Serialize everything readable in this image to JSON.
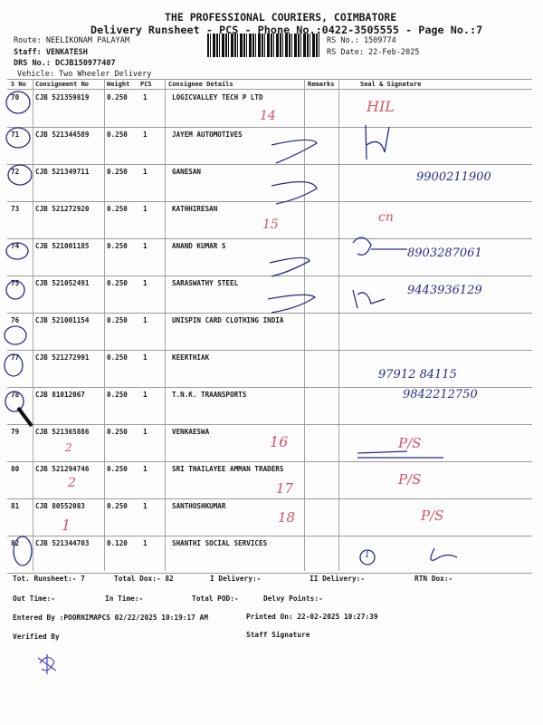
{
  "header": {
    "company": "THE PROFESSIONAL COURIERS, COIMBATORE",
    "title": "Delivery Runsheet - PCS - Phone No.:0422-3505555 - Page No.:7",
    "route": "Route: NEELIKONAM PALAYAM",
    "staff": "Staff: VENKATESH",
    "drs_no": "DRS No.: DCJB150977407",
    "vehicle": "Vehicle: Two Wheeler Delivery",
    "rs_no": "RS No.: 1509774",
    "rs_date": "RS Date: 22-Feb-2025"
  },
  "table": {
    "columns": [
      "S No",
      "Consignment No",
      "Weight",
      "PCS",
      "Consignee Details",
      "Remarks",
      "Seal & Signature"
    ],
    "rows": [
      {
        "sno": "70",
        "cn": "CJB 521359819",
        "weight": "0.250",
        "pcs": "1",
        "consignee": "LOGICVALLEY TECH P  LTD"
      },
      {
        "sno": "71",
        "cn": "CJB 521344589",
        "weight": "0.250",
        "pcs": "1",
        "consignee": "JAYEM AUTOMOTIVES"
      },
      {
        "sno": "72",
        "cn": "CJB 521349711",
        "weight": "0.250",
        "pcs": "1",
        "consignee": "GANESAN"
      },
      {
        "sno": "73",
        "cn": "CJB 521272920",
        "weight": "0.250",
        "pcs": "1",
        "consignee": "KATHHIRESAN"
      },
      {
        "sno": "74",
        "cn": "CJB 521001185",
        "weight": "0.250",
        "pcs": "1",
        "consignee": "ANAND KUMAR S"
      },
      {
        "sno": "75",
        "cn": "CJB 521052491",
        "weight": "0.250",
        "pcs": "1",
        "consignee": "SARASWATHY STEEL"
      },
      {
        "sno": "76",
        "cn": "CJB 521001154",
        "weight": "0.250",
        "pcs": "1",
        "consignee": "UNISPIN CARD CLOTHING INDIA"
      },
      {
        "sno": "77",
        "cn": "CJB 521272991",
        "weight": "0.250",
        "pcs": "1",
        "consignee": "KEERTHIAK"
      },
      {
        "sno": "78",
        "cn": "CJB 81012067",
        "weight": "0.250",
        "pcs": "1",
        "consignee": "T.N.K. TRAANSPORTS"
      },
      {
        "sno": "79",
        "cn": "CJB 521365886",
        "weight": "0.250",
        "pcs": "1",
        "consignee": "VENKAESWA"
      },
      {
        "sno": "80",
        "cn": "CJB 521294746",
        "weight": "0.250",
        "pcs": "1",
        "consignee": "SRI THAILAYEE AMMAN TRADERS"
      },
      {
        "sno": "81",
        "cn": "CJB 80552083",
        "weight": "0.250",
        "pcs": "1",
        "consignee": "SANTHOSHKUMAR"
      },
      {
        "sno": "82",
        "cn": "CJB 521344703",
        "weight": "0.120",
        "pcs": "1",
        "consignee": "SHANTHI SOCIAL SERVICES"
      }
    ]
  },
  "footer": {
    "tot_runsheet": "Tot. Runsheet:- 7",
    "total_dox": "Total Dox:-   82",
    "i_delivery": "I Delivery:-",
    "ii_delivery": "II Delivery:-",
    "rtn_dox": "RTN Dox:-",
    "out_time": "Out Time:-",
    "in_time": "In Time:-",
    "total_pod": "Total POD:-",
    "delvy_points": "Delvy Points:-",
    "entered_by": "Entered By :POORNIMAPCS 02/22/2025 10:19:17 AM",
    "printed_on": "Printed On: 22-02-2025 10:27:39",
    "verified_by": "Verified By",
    "staff_signature": "Staff Signature"
  },
  "handwriting": {
    "r70_sig": "HIL",
    "r70_rem": "14",
    "r72_phone": "9900211900",
    "r73_sig": "cn",
    "r73_rem": "15",
    "r74_phone": "8903287061",
    "r75_phone": "9443936129",
    "r77_phone1": "97912 84115",
    "r77_phone2": "9842212750",
    "r79_sig": "P/S",
    "r79_rem": "16",
    "r79_mark": "2",
    "r80_sig": "P/S",
    "r80_rem": "17",
    "r80_mark": "2",
    "r81_sig": "P/S",
    "r81_rem": "18",
    "r81_mark": "1",
    "r82_mark": "1"
  },
  "colors": {
    "ink_blue": "#2a2a8a",
    "ink_red": "#d8506a"
  }
}
